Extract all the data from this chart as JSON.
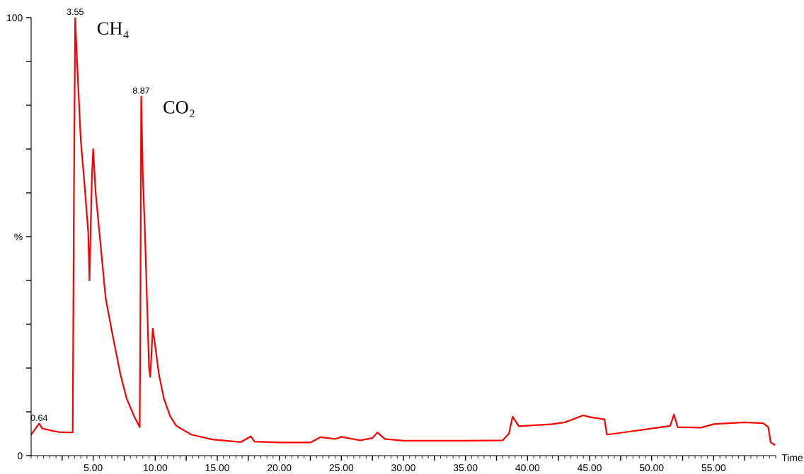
{
  "chart_data": {
    "type": "line",
    "xlabel": "Time",
    "x": [
      0.0,
      0.3,
      0.64,
      0.9,
      1.5,
      2.2,
      3.0,
      3.35,
      3.45,
      3.55,
      3.7,
      4.0,
      4.3,
      4.6,
      4.7,
      4.9,
      5.0,
      5.2,
      5.5,
      6.0,
      6.6,
      7.2,
      7.7,
      8.3,
      8.75,
      8.8,
      8.87,
      9.0,
      9.17,
      9.34,
      9.5,
      9.6,
      9.8,
      10.0,
      10.3,
      10.7,
      11.2,
      11.7,
      12.9,
      14.6,
      16.9,
      17.7,
      18.0,
      20.0,
      22.5,
      23.3,
      24.5,
      25.0,
      26.5,
      27.5,
      27.9,
      28.5,
      30.0,
      35.0,
      38.0,
      38.5,
      38.8,
      39.3,
      42.0,
      43.0,
      44.5,
      45.0,
      46.2,
      46.4,
      48.0,
      50.0,
      51.5,
      51.8,
      52.1,
      54.0,
      55.0,
      57.5,
      59.0,
      59.4,
      59.6,
      59.9
    ],
    "series": [
      {
        "color": "#ff0000",
        "values": [
          4.8,
          6.0,
          7.3,
          6.2,
          5.8,
          5.4,
          5.3,
          5.3,
          60,
          100,
          90,
          72,
          62,
          51,
          40,
          64,
          70,
          60,
          51,
          36,
          27,
          18.5,
          13,
          9,
          6.5,
          30,
          82,
          64,
          51,
          35,
          20,
          18,
          29,
          25,
          18.5,
          13,
          9,
          6.8,
          4.8,
          3.7,
          3.1,
          4.4,
          3.2,
          3.0,
          3.0,
          4.2,
          3.8,
          4.3,
          3.5,
          4.0,
          5.3,
          3.8,
          3.4,
          3.4,
          3.5,
          5.0,
          8.9,
          6.7,
          7.2,
          7.6,
          9.2,
          8.8,
          8.3,
          4.8,
          5.4,
          6.2,
          6.8,
          9.4,
          6.5,
          6.4,
          7.2,
          7.6,
          7.4,
          6.5,
          3.0,
          2.5
        ]
      }
    ],
    "xlim": [
      0,
      60
    ],
    "xticks": [
      {
        "value": 2.5,
        "label": null
      },
      {
        "value": 5,
        "label": "5.00"
      },
      {
        "value": 7.5,
        "label": null
      },
      {
        "value": 10,
        "label": "10.00"
      },
      {
        "value": 12.5,
        "label": null
      },
      {
        "value": 15,
        "label": "15.00"
      },
      {
        "value": 17.5,
        "label": null
      },
      {
        "value": 20,
        "label": "20.00"
      },
      {
        "value": 22.5,
        "label": null
      },
      {
        "value": 25,
        "label": "25.00"
      },
      {
        "value": 27.5,
        "label": null
      },
      {
        "value": 30,
        "label": "30.00"
      },
      {
        "value": 32.5,
        "label": null
      },
      {
        "value": 35,
        "label": "35.00"
      },
      {
        "value": 37.5,
        "label": null
      },
      {
        "value": 40,
        "label": "40.00"
      },
      {
        "value": 42.5,
        "label": null
      },
      {
        "value": 45,
        "label": "45.00"
      },
      {
        "value": 47.5,
        "label": null
      },
      {
        "value": 50,
        "label": "50.00"
      },
      {
        "value": 52.5,
        "label": null
      },
      {
        "value": 55,
        "label": "55.00"
      },
      {
        "value": 57.5,
        "label": null
      }
    ],
    "ylim": [
      0,
      100
    ],
    "yticks": [
      0,
      {
        "value": 10,
        "label": null
      },
      {
        "value": 20,
        "label": null
      },
      {
        "value": 30,
        "label": null
      },
      {
        "value": 40,
        "label": null
      },
      {
        "value": 50,
        "label": "%"
      },
      {
        "value": 60,
        "label": null
      },
      {
        "value": 70,
        "label": null
      },
      {
        "value": 80,
        "label": null
      },
      {
        "value": 90,
        "label": null
      },
      100
    ],
    "annotations": [
      {
        "text": "0.64",
        "x": 0.64,
        "y": 7.3
      },
      {
        "text": "3.55",
        "x": 3.55,
        "y": 100
      },
      {
        "text": "CH₄",
        "x": 3.55,
        "y": 100
      },
      {
        "text": "8.87",
        "x": 8.87,
        "y": 82
      },
      {
        "text": "CO₂",
        "x": 8.87,
        "y": 82
      }
    ],
    "grid": false,
    "legend": false,
    "marker": "none",
    "line_style": "solid"
  }
}
